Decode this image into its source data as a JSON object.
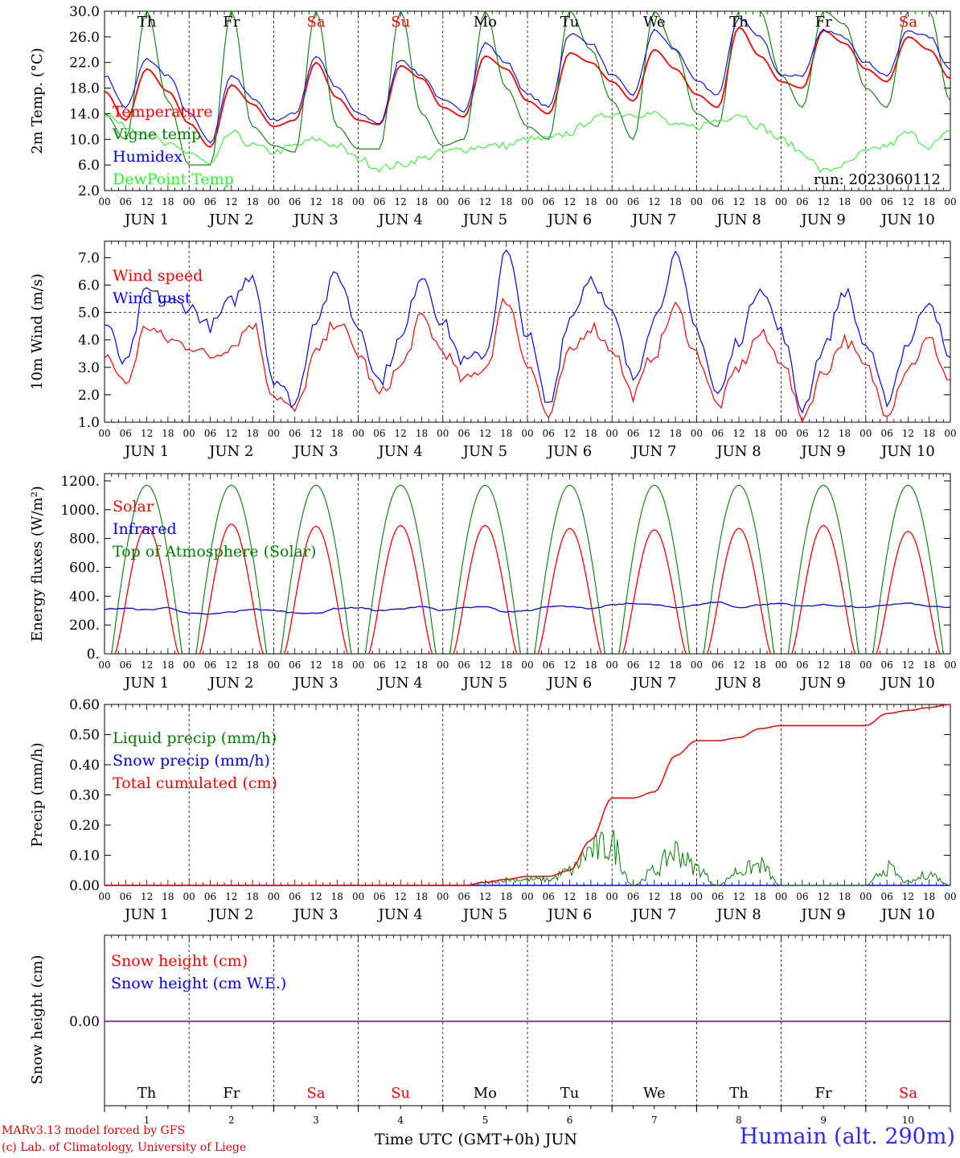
{
  "run_label": "run: 2023060112",
  "footer": {
    "model": "MARv3.13 model forced by GFS",
    "lab": "(c) Lab. of Climatology, University of Liege",
    "xaxis_title": "Time UTC (GMT+0h) JUN",
    "station": "Humain (alt. 290m)"
  },
  "colors": {
    "red": "#ff0000",
    "green": "#008000",
    "blue": "#0000ff",
    "lightgreen": "#33ee33",
    "purple": "#800080",
    "black": "#000000"
  },
  "time_axis": {
    "hour_ticks": [
      "00",
      "06",
      "12",
      "18"
    ],
    "final_tick": "00",
    "date_labels": [
      "JUN  1",
      "JUN  2",
      "JUN  3",
      "JUN  4",
      "JUN  5",
      "JUN  6",
      "JUN  7",
      "JUN  8",
      "JUN  9",
      "JUN 10"
    ],
    "day_names": [
      "Th",
      "Fr",
      "Sa",
      "Su",
      "Mo",
      "Tu",
      "We",
      "Th",
      "Fr",
      "Sa"
    ],
    "day_colors": [
      "#000000",
      "#000000",
      "#ff0000",
      "#ff0000",
      "#000000",
      "#000000",
      "#000000",
      "#000000",
      "#000000",
      "#ff0000"
    ],
    "day_numbers": [
      "1",
      "2",
      "3",
      "4",
      "5",
      "6",
      "7",
      "8",
      "9",
      "10"
    ]
  },
  "chart_data": [
    {
      "type": "line",
      "ylabel": "2m Temp. (°C)",
      "ylim": [
        2,
        30
      ],
      "yticks": [
        "2.0",
        "6.0",
        "10.0",
        "14.0",
        "18.0",
        "22.0",
        "26.0",
        "30.0"
      ],
      "legend_placement": "left",
      "series": [
        {
          "name": "Temperature",
          "color": "#ff0000",
          "hourly_x": [
            0,
            6,
            12,
            18,
            24,
            30,
            36,
            42,
            48,
            54,
            60,
            66,
            72,
            78,
            84,
            90,
            96,
            102,
            108,
            114,
            120,
            126,
            132,
            138,
            144,
            150,
            156,
            162,
            168,
            174,
            180,
            186,
            192,
            198,
            204,
            210,
            216,
            222,
            228,
            234,
            240
          ],
          "values": [
            17.5,
            13,
            21,
            17.5,
            12.5,
            8.8,
            18.5,
            15.5,
            12,
            13,
            22,
            16.5,
            13,
            12.3,
            21.5,
            19.5,
            15,
            13.5,
            23,
            21,
            16,
            14,
            23.5,
            22,
            19,
            16,
            24,
            21,
            17,
            15,
            27.5,
            23,
            19,
            18,
            27,
            25,
            21,
            19,
            26,
            24,
            19.5
          ]
        },
        {
          "name": "Vigne temp",
          "color": "#008000",
          "values": [
            14,
            10,
            30,
            16,
            6,
            6,
            30,
            12,
            9,
            8,
            30,
            12,
            8.5,
            8.5,
            30,
            14,
            9,
            10,
            30,
            18,
            12,
            10,
            30,
            24,
            16,
            10,
            30,
            24,
            14,
            12,
            30,
            30,
            20,
            15,
            30,
            28,
            18,
            15,
            30,
            30,
            16
          ]
        },
        {
          "name": "Humidex",
          "color": "#0000ff",
          "values": [
            20,
            15,
            22.5,
            20,
            14,
            9.5,
            20,
            16.5,
            13,
            14,
            23,
            18,
            14,
            12.5,
            22.5,
            20,
            16,
            14.5,
            25,
            22,
            17,
            15,
            26.5,
            25,
            20,
            17,
            27,
            24,
            19,
            17,
            29,
            26,
            20,
            20,
            27,
            26,
            22,
            20,
            27,
            26,
            21
          ]
        },
        {
          "name": "DewPoint Temp",
          "color": "#33ee33",
          "values": [
            14,
            12,
            11,
            9,
            8,
            6,
            11,
            9,
            8,
            9,
            10,
            9,
            7,
            5.5,
            6,
            7,
            8,
            8.5,
            9,
            9,
            10,
            10,
            11,
            13,
            14,
            14,
            14,
            12,
            12,
            13,
            14,
            12,
            10,
            8,
            5,
            6,
            8,
            9,
            11,
            9,
            11
          ]
        }
      ]
    },
    {
      "type": "line",
      "ylabel": "10m Wind (m/s)",
      "ylim": [
        1,
        7.6
      ],
      "yticks": [
        "1.0",
        "2.0",
        "3.0",
        "4.0",
        "5.0",
        "6.0",
        "7.0"
      ],
      "reference_line": 5.0,
      "series": [
        {
          "name": "Wind speed",
          "color": "#ff0000",
          "values": [
            3.5,
            2.4,
            4.5,
            4.0,
            3.8,
            3.4,
            3.8,
            4.6,
            2.0,
            1.4,
            3.5,
            4.7,
            3.5,
            2.0,
            3.0,
            4.8,
            3.6,
            2.5,
            3.0,
            5.5,
            3.2,
            1.2,
            3.5,
            4.5,
            3.7,
            2.0,
            3.5,
            5.2,
            3.5,
            1.6,
            3.0,
            4.2,
            3.3,
            1.2,
            2.8,
            4.0,
            3.0,
            1.4,
            3.0,
            4.0,
            2.5
          ]
        },
        {
          "name": "Wind gust",
          "color": "#0000ff",
          "values": [
            4.6,
            3.1,
            5.8,
            5.4,
            5.2,
            4.5,
            5.4,
            6.4,
            2.6,
            1.7,
            4.8,
            6.4,
            4.5,
            2.5,
            4.0,
            6.4,
            4.6,
            3.2,
            3.5,
            7.2,
            4.2,
            1.6,
            4.8,
            6.3,
            4.9,
            2.6,
            4.8,
            7.0,
            4.4,
            2.0,
            4.0,
            6.0,
            4.3,
            1.5,
            3.7,
            5.8,
            3.8,
            1.8,
            3.9,
            5.5,
            3.2
          ]
        }
      ]
    },
    {
      "type": "line",
      "ylabel": "Energy fluxes (W/m²)",
      "ylim": [
        0,
        1250
      ],
      "yticks": [
        "0.",
        "200.",
        "400.",
        "600.",
        "800.",
        "1000.",
        "1200."
      ],
      "series": [
        {
          "name": "Solar",
          "color": "#ff0000",
          "daily_peaks": [
            880,
            900,
            885,
            890,
            890,
            870,
            860,
            870,
            890,
            850
          ]
        },
        {
          "name": "Infrared",
          "color": "#0000ff",
          "values": [
            310,
            315,
            305,
            320,
            280,
            275,
            290,
            310,
            300,
            285,
            280,
            315,
            320,
            300,
            310,
            330,
            300,
            320,
            325,
            290,
            300,
            330,
            330,
            310,
            340,
            350,
            340,
            320,
            340,
            360,
            320,
            340,
            350,
            330,
            340,
            330,
            320,
            340,
            350,
            330,
            320
          ]
        },
        {
          "name": "Top of Atmosphere (Solar)",
          "color": "#008000",
          "daily_peak": 1170
        }
      ]
    },
    {
      "type": "line",
      "ylabel": "Precip (mm/h)",
      "ylim": [
        0,
        0.6
      ],
      "yticks": [
        "0.00",
        "0.10",
        "0.20",
        "0.30",
        "0.40",
        "0.50",
        "0.60"
      ],
      "series": [
        {
          "name": "Liquid precip (mm/h)",
          "color": "#008000",
          "values": [
            0,
            0,
            0,
            0,
            0,
            0,
            0,
            0,
            0,
            0,
            0,
            0,
            0,
            0,
            0,
            0,
            0,
            0,
            0.01,
            0.02,
            0.02,
            0.02,
            0.05,
            0.12,
            0.14,
            0,
            0.05,
            0.12,
            0.06,
            0,
            0.05,
            0.07,
            0,
            0,
            0,
            0,
            0,
            0.06,
            0.01,
            0.04,
            0
          ]
        },
        {
          "name": "Snow precip (mm/h)",
          "color": "#0000ff",
          "values": [
            0,
            0,
            0,
            0,
            0,
            0,
            0,
            0,
            0,
            0,
            0,
            0,
            0,
            0,
            0,
            0,
            0,
            0,
            0,
            0,
            0,
            0,
            0,
            0,
            0,
            0,
            0,
            0,
            0,
            0,
            0,
            0,
            0,
            0,
            0,
            0,
            0,
            0,
            0,
            0,
            0
          ]
        },
        {
          "name": "Total cumulated (cm)",
          "color": "#ff0000",
          "values": [
            0,
            0,
            0,
            0,
            0,
            0,
            0,
            0,
            0,
            0,
            0,
            0,
            0,
            0,
            0,
            0,
            0,
            0,
            0.01,
            0.02,
            0.03,
            0.03,
            0.05,
            0.15,
            0.29,
            0.29,
            0.31,
            0.43,
            0.48,
            0.48,
            0.49,
            0.52,
            0.53,
            0.53,
            0.53,
            0.53,
            0.53,
            0.57,
            0.58,
            0.59,
            0.6
          ]
        }
      ]
    },
    {
      "type": "line",
      "ylabel": "Snow height (cm)",
      "yticks": [
        "0.00"
      ],
      "series": [
        {
          "name": "Snow height (cm)",
          "color": "#ff0000",
          "values": [
            0,
            0
          ]
        },
        {
          "name": "Snow height (cm W.E.)",
          "color": "#0000ff",
          "values": [
            0,
            0
          ]
        }
      ]
    }
  ]
}
